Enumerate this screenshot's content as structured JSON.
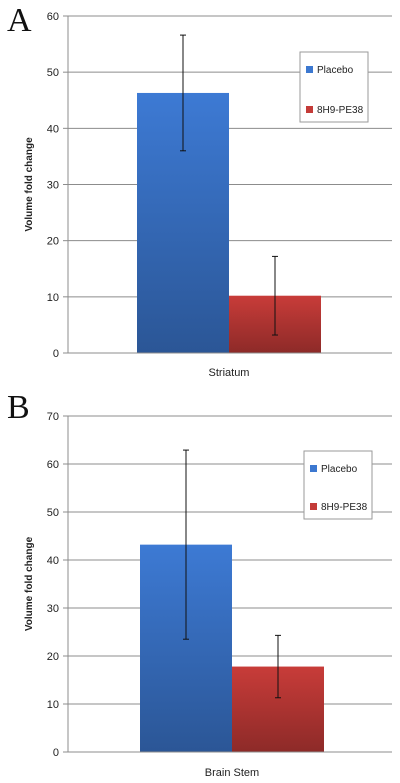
{
  "chart_data": [
    {
      "panel_label": "A",
      "type": "bar",
      "categories": [
        "Striatum"
      ],
      "series": [
        {
          "name": "Placebo",
          "values": [
            46.3
          ],
          "error": [
            10.3
          ],
          "color": "#3c78d0"
        },
        {
          "name": "8H9-PE38",
          "values": [
            10.2
          ],
          "error": [
            7.0
          ],
          "color": "#c43b38"
        }
      ],
      "ylabel": "Volume fold change",
      "ylim": [
        0,
        60
      ],
      "yticks": [
        0,
        10,
        20,
        30,
        40,
        50,
        60
      ],
      "grid": true,
      "legend": "top-right"
    },
    {
      "panel_label": "B",
      "type": "bar",
      "categories": [
        "Brain Stem"
      ],
      "series": [
        {
          "name": "Placebo",
          "values": [
            43.2
          ],
          "error": [
            19.7
          ],
          "color": "#3c78d0"
        },
        {
          "name": "8H9-PE38",
          "values": [
            17.8
          ],
          "error": [
            6.5
          ],
          "color": "#c43b38"
        }
      ],
      "ylabel": "Volume fold change",
      "ylim": [
        0,
        70
      ],
      "yticks": [
        0,
        10,
        20,
        30,
        40,
        50,
        60,
        70
      ],
      "grid": true,
      "legend": "top-right"
    }
  ]
}
